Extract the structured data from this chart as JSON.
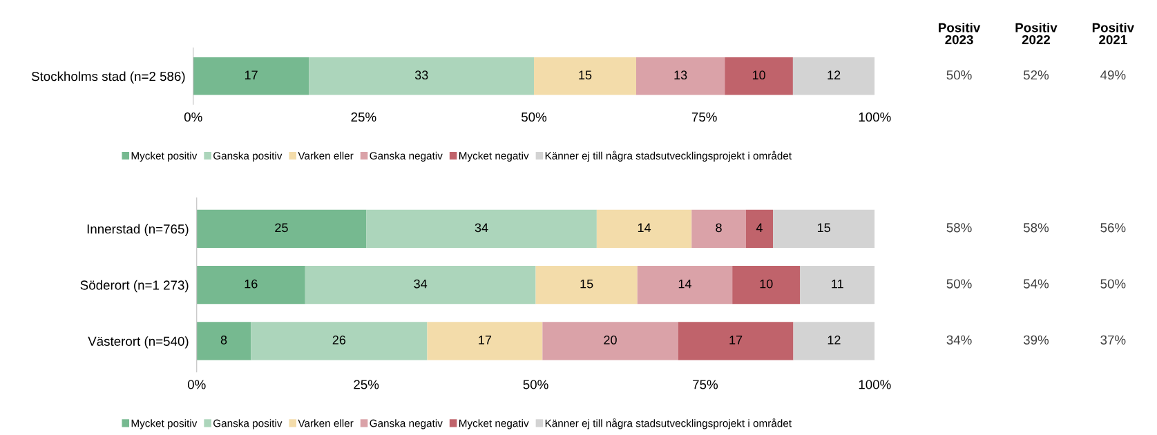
{
  "chart_data": [
    {
      "type": "bar",
      "orientation": "horizontal",
      "stacked": true,
      "data_labels": true,
      "legend": "bottom",
      "categories": [
        "Stockholms stad (n=2 586)"
      ],
      "xlim": [
        0,
        100
      ],
      "xticks": [
        {
          "value": 0,
          "label": "0%"
        },
        {
          "value": 25,
          "label": "25%"
        },
        {
          "value": 50,
          "label": "50%"
        },
        {
          "value": 75,
          "label": "75%"
        },
        {
          "value": 100,
          "label": "100%"
        }
      ],
      "series": [
        {
          "name": "Mycket positiv",
          "color": "#76b990",
          "values": [
            17
          ]
        },
        {
          "name": "Ganska positiv",
          "color": "#acd5bb",
          "values": [
            33
          ]
        },
        {
          "name": "Varken eller",
          "color": "#f3dcaa",
          "values": [
            15
          ]
        },
        {
          "name": "Ganska negativ",
          "color": "#daa2a8",
          "values": [
            13
          ]
        },
        {
          "name": "Mycket negativ",
          "color": "#c0636b",
          "values": [
            10
          ]
        },
        {
          "name": "Känner ej till några stadsutvecklingsprojekt i området",
          "color": "#d3d3d3",
          "values": [
            12
          ]
        }
      ]
    },
    {
      "type": "bar",
      "orientation": "horizontal",
      "stacked": true,
      "data_labels": true,
      "legend": "bottom",
      "categories": [
        "Innerstad (n=765)",
        "Söderort (n=1 273)",
        "Västerort (n=540)"
      ],
      "xlim": [
        0,
        100
      ],
      "xticks": [
        {
          "value": 0,
          "label": "0%"
        },
        {
          "value": 25,
          "label": "25%"
        },
        {
          "value": 50,
          "label": "50%"
        },
        {
          "value": 75,
          "label": "75%"
        },
        {
          "value": 100,
          "label": "100%"
        }
      ],
      "series": [
        {
          "name": "Mycket positiv",
          "color": "#76b990",
          "values": [
            25,
            16,
            8
          ]
        },
        {
          "name": "Ganska positiv",
          "color": "#acd5bb",
          "values": [
            34,
            34,
            26
          ]
        },
        {
          "name": "Varken eller",
          "color": "#f3dcaa",
          "values": [
            14,
            15,
            17
          ]
        },
        {
          "name": "Ganska negativ",
          "color": "#daa2a8",
          "values": [
            8,
            14,
            20
          ]
        },
        {
          "name": "Mycket negativ",
          "color": "#c0636b",
          "values": [
            4,
            10,
            17
          ]
        },
        {
          "name": "Känner ej till några stadsutvecklingsprojekt i området",
          "color": "#d3d3d3",
          "values": [
            15,
            11,
            12
          ]
        }
      ]
    },
    {
      "type": "other",
      "categories": [
        "Positiv\n2023",
        "Positiv\n2022",
        "Positiv\n2021"
      ],
      "annotations": [
        "50%",
        "52%",
        "49%",
        "58%",
        "58%",
        "56%",
        "50%",
        "54%",
        "50%",
        "34%",
        "39%",
        "37%"
      ]
    }
  ]
}
